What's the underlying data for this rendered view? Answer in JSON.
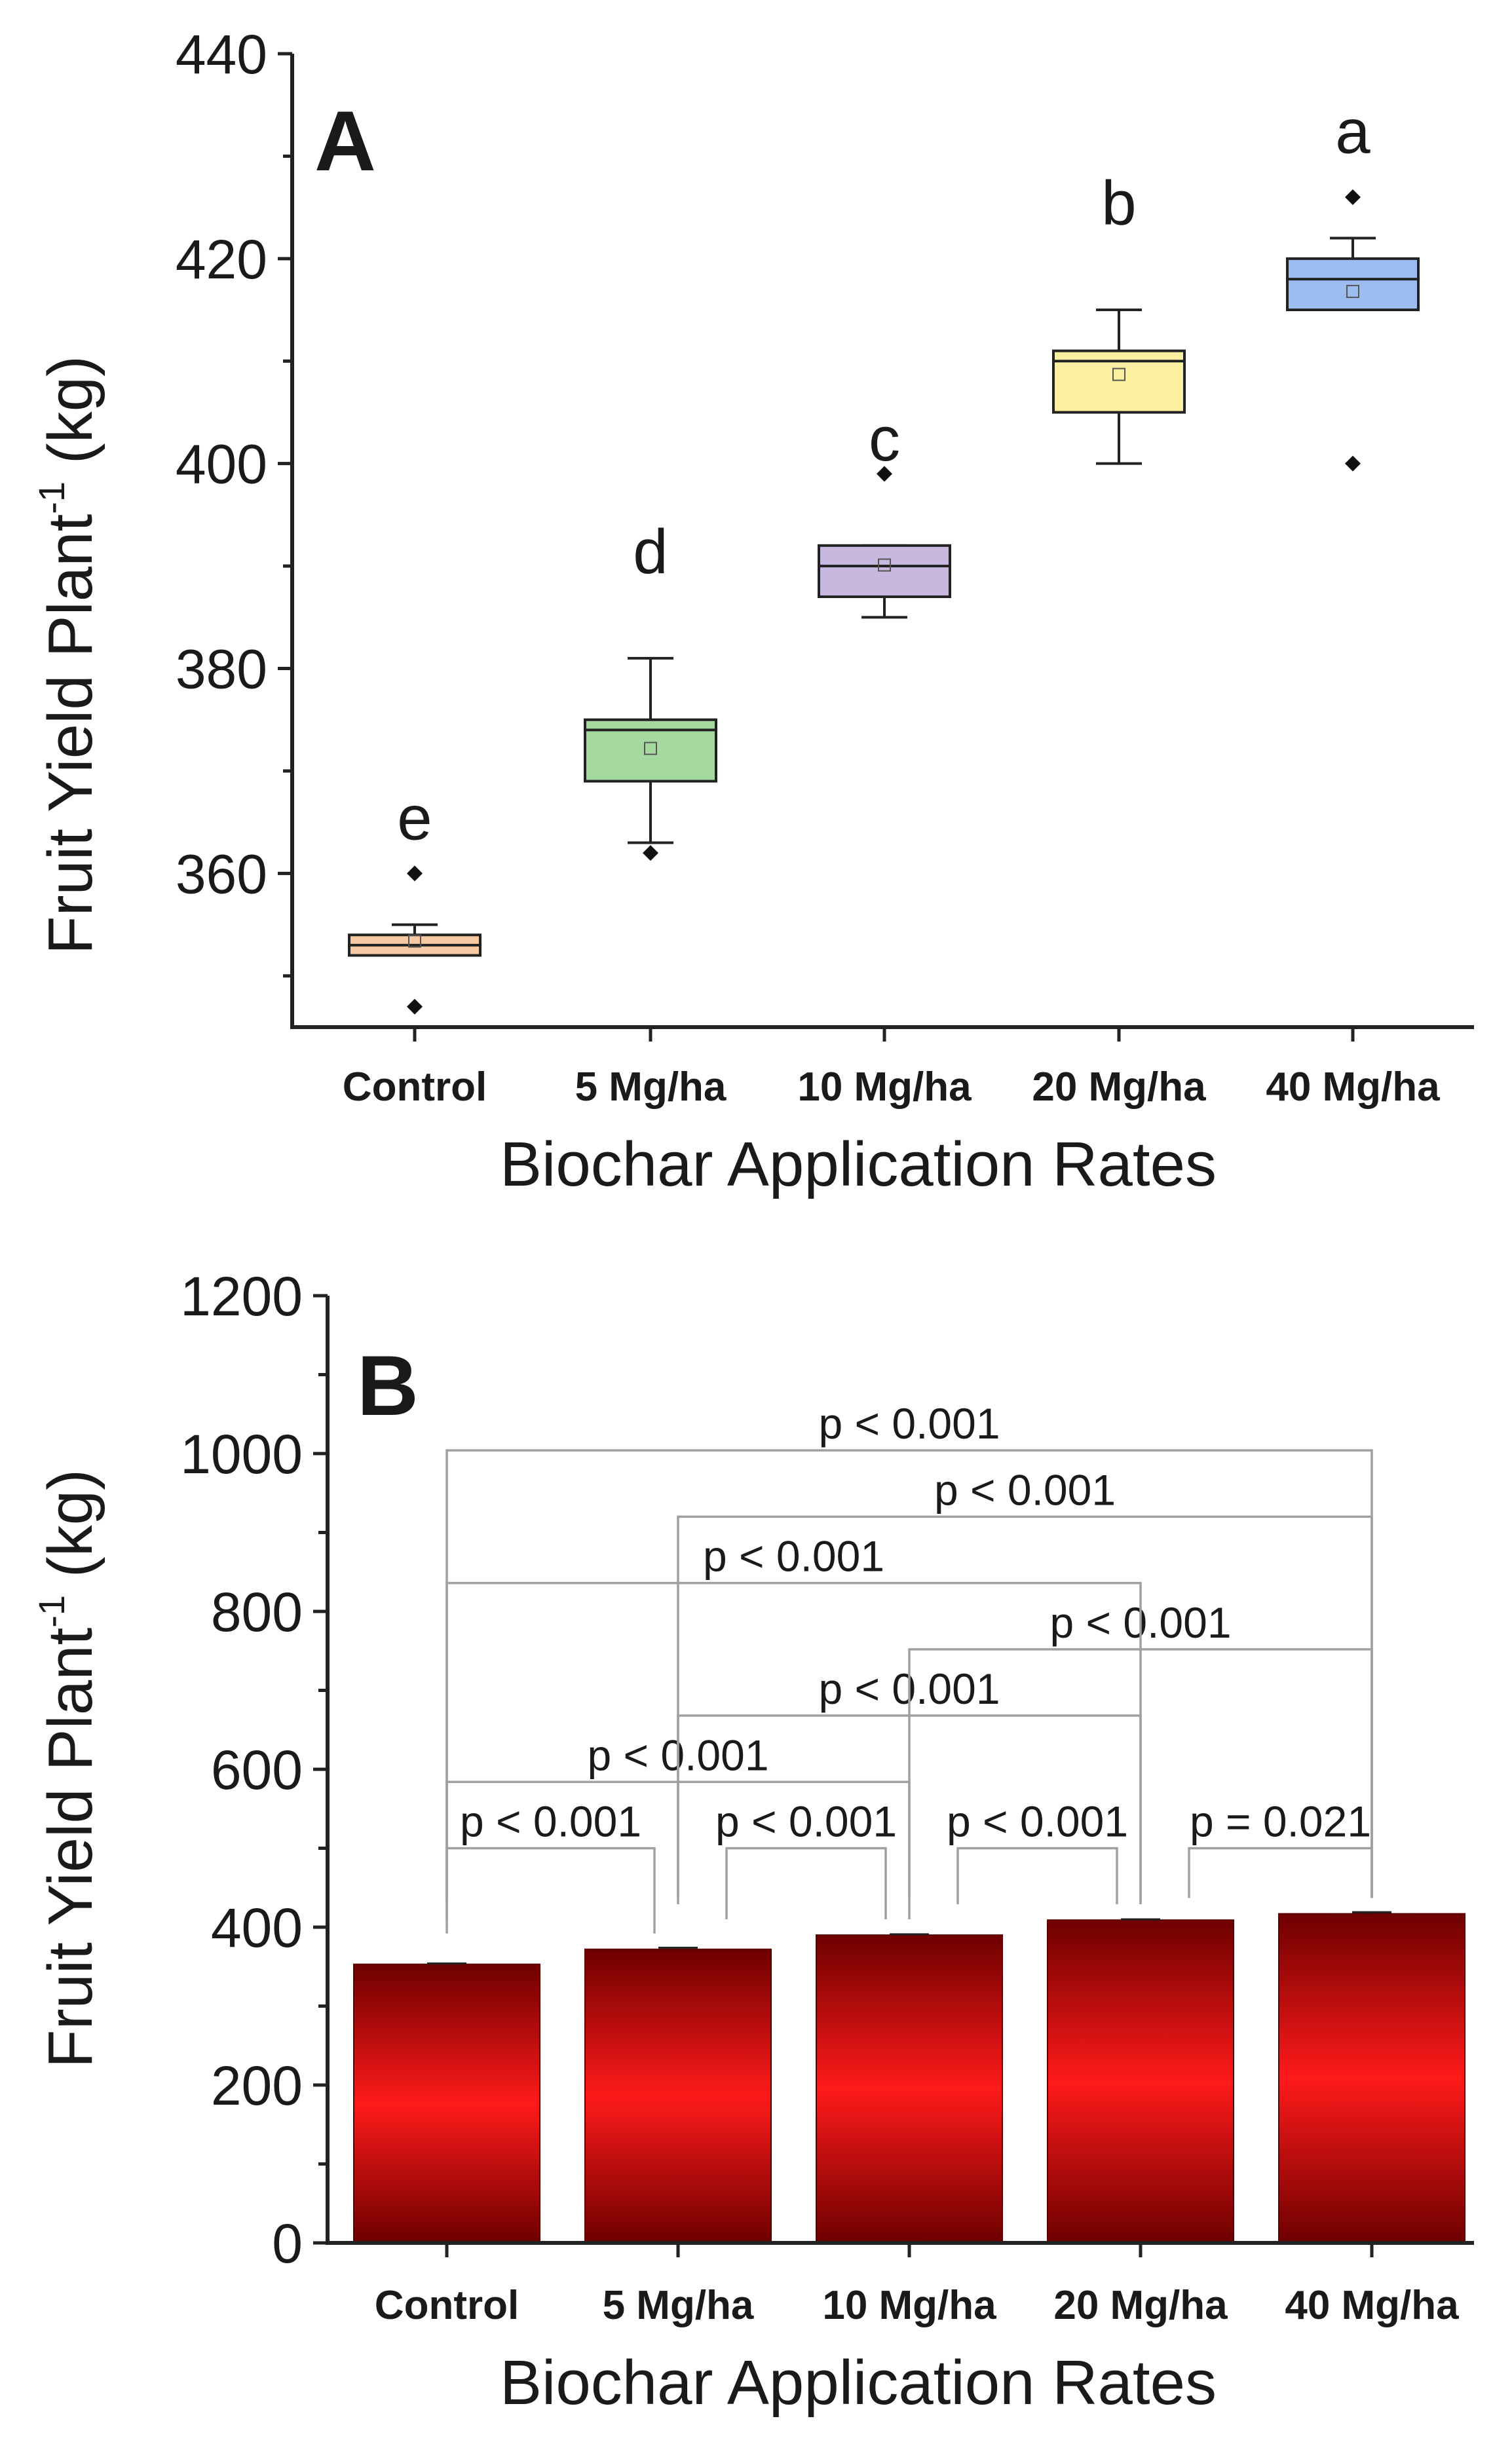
{
  "colors": {
    "box_fills": [
      "#f6c9a2",
      "#a5d9a0",
      "#c8b7df",
      "#fbf0a0",
      "#9dbdf0"
    ],
    "bar_edge": "#6e0000",
    "bar_center": "#ff1a1a"
  },
  "chart_data": [
    {
      "type": "box",
      "panel": "A",
      "categories": [
        "Control",
        "5 Mg/ha",
        "10 Mg/ha",
        "20 Mg/ha",
        "40 Mg/ha"
      ],
      "xlabel": "Biochar Application Rates",
      "ylabel_main": "Fruit Yield Plant",
      "ylabel_sup": "-1",
      "ylabel_unit": " (kg)",
      "ylim": [
        345,
        440
      ],
      "yticks": [
        360,
        380,
        400,
        420,
        440
      ],
      "grid": false,
      "boxes": [
        {
          "q1": 352,
          "median": 353,
          "q3": 354,
          "whisker_low": 352,
          "whisker_high": 355,
          "mean": 353.4,
          "outliers": [
            360,
            347
          ],
          "letter": "e"
        },
        {
          "q1": 369,
          "median": 374,
          "q3": 375,
          "whisker_low": 363,
          "whisker_high": 381,
          "mean": 372.2,
          "outliers": [
            362
          ],
          "letter": "d"
        },
        {
          "q1": 387,
          "median": 390,
          "q3": 392,
          "whisker_low": 385,
          "whisker_high": 392,
          "mean": 390.1,
          "outliers": [
            399
          ],
          "letter": "c"
        },
        {
          "q1": 405,
          "median": 410,
          "q3": 411,
          "whisker_low": 400,
          "whisker_high": 415,
          "mean": 408.7,
          "outliers": [],
          "letter": "b"
        },
        {
          "q1": 415,
          "median": 418,
          "q3": 420,
          "whisker_low": 415,
          "whisker_high": 422,
          "mean": 416.8,
          "outliers": [
            426,
            400
          ],
          "letter": "a"
        }
      ]
    },
    {
      "type": "bar",
      "panel": "B",
      "categories": [
        "Control",
        "5 Mg/ha",
        "10 Mg/ha",
        "20 Mg/ha",
        "40 Mg/ha"
      ],
      "values": [
        353,
        372,
        390,
        409,
        417
      ],
      "errors": [
        1,
        2,
        1,
        1,
        2
      ],
      "xlabel": "Biochar Application Rates",
      "ylabel_main": "Fruit Yield Plant",
      "ylabel_sup": "-1",
      "ylabel_unit": " (kg)",
      "ylim": [
        0,
        1200
      ],
      "yticks": [
        0,
        200,
        400,
        600,
        800,
        1000,
        1200
      ],
      "grid": false,
      "comparisons": [
        {
          "from": 0,
          "to": 1,
          "label": "p < 0.001",
          "y": 500
        },
        {
          "from": 1,
          "to": 2,
          "label": "p < 0.001",
          "y": 500
        },
        {
          "from": 2,
          "to": 3,
          "label": "p < 0.001",
          "y": 500
        },
        {
          "from": 3,
          "to": 4,
          "label": "p = 0.021",
          "y": 500
        },
        {
          "from": 0,
          "to": 2,
          "label": "p < 0.001",
          "y": 584
        },
        {
          "from": 1,
          "to": 3,
          "label": "p < 0.001",
          "y": 668
        },
        {
          "from": 2,
          "to": 4,
          "label": "p < 0.001",
          "y": 752
        },
        {
          "from": 0,
          "to": 3,
          "label": "p < 0.001",
          "y": 836
        },
        {
          "from": 1,
          "to": 4,
          "label": "p < 0.001",
          "y": 920
        },
        {
          "from": 0,
          "to": 4,
          "label": "p < 0.001",
          "y": 1004
        }
      ]
    }
  ]
}
